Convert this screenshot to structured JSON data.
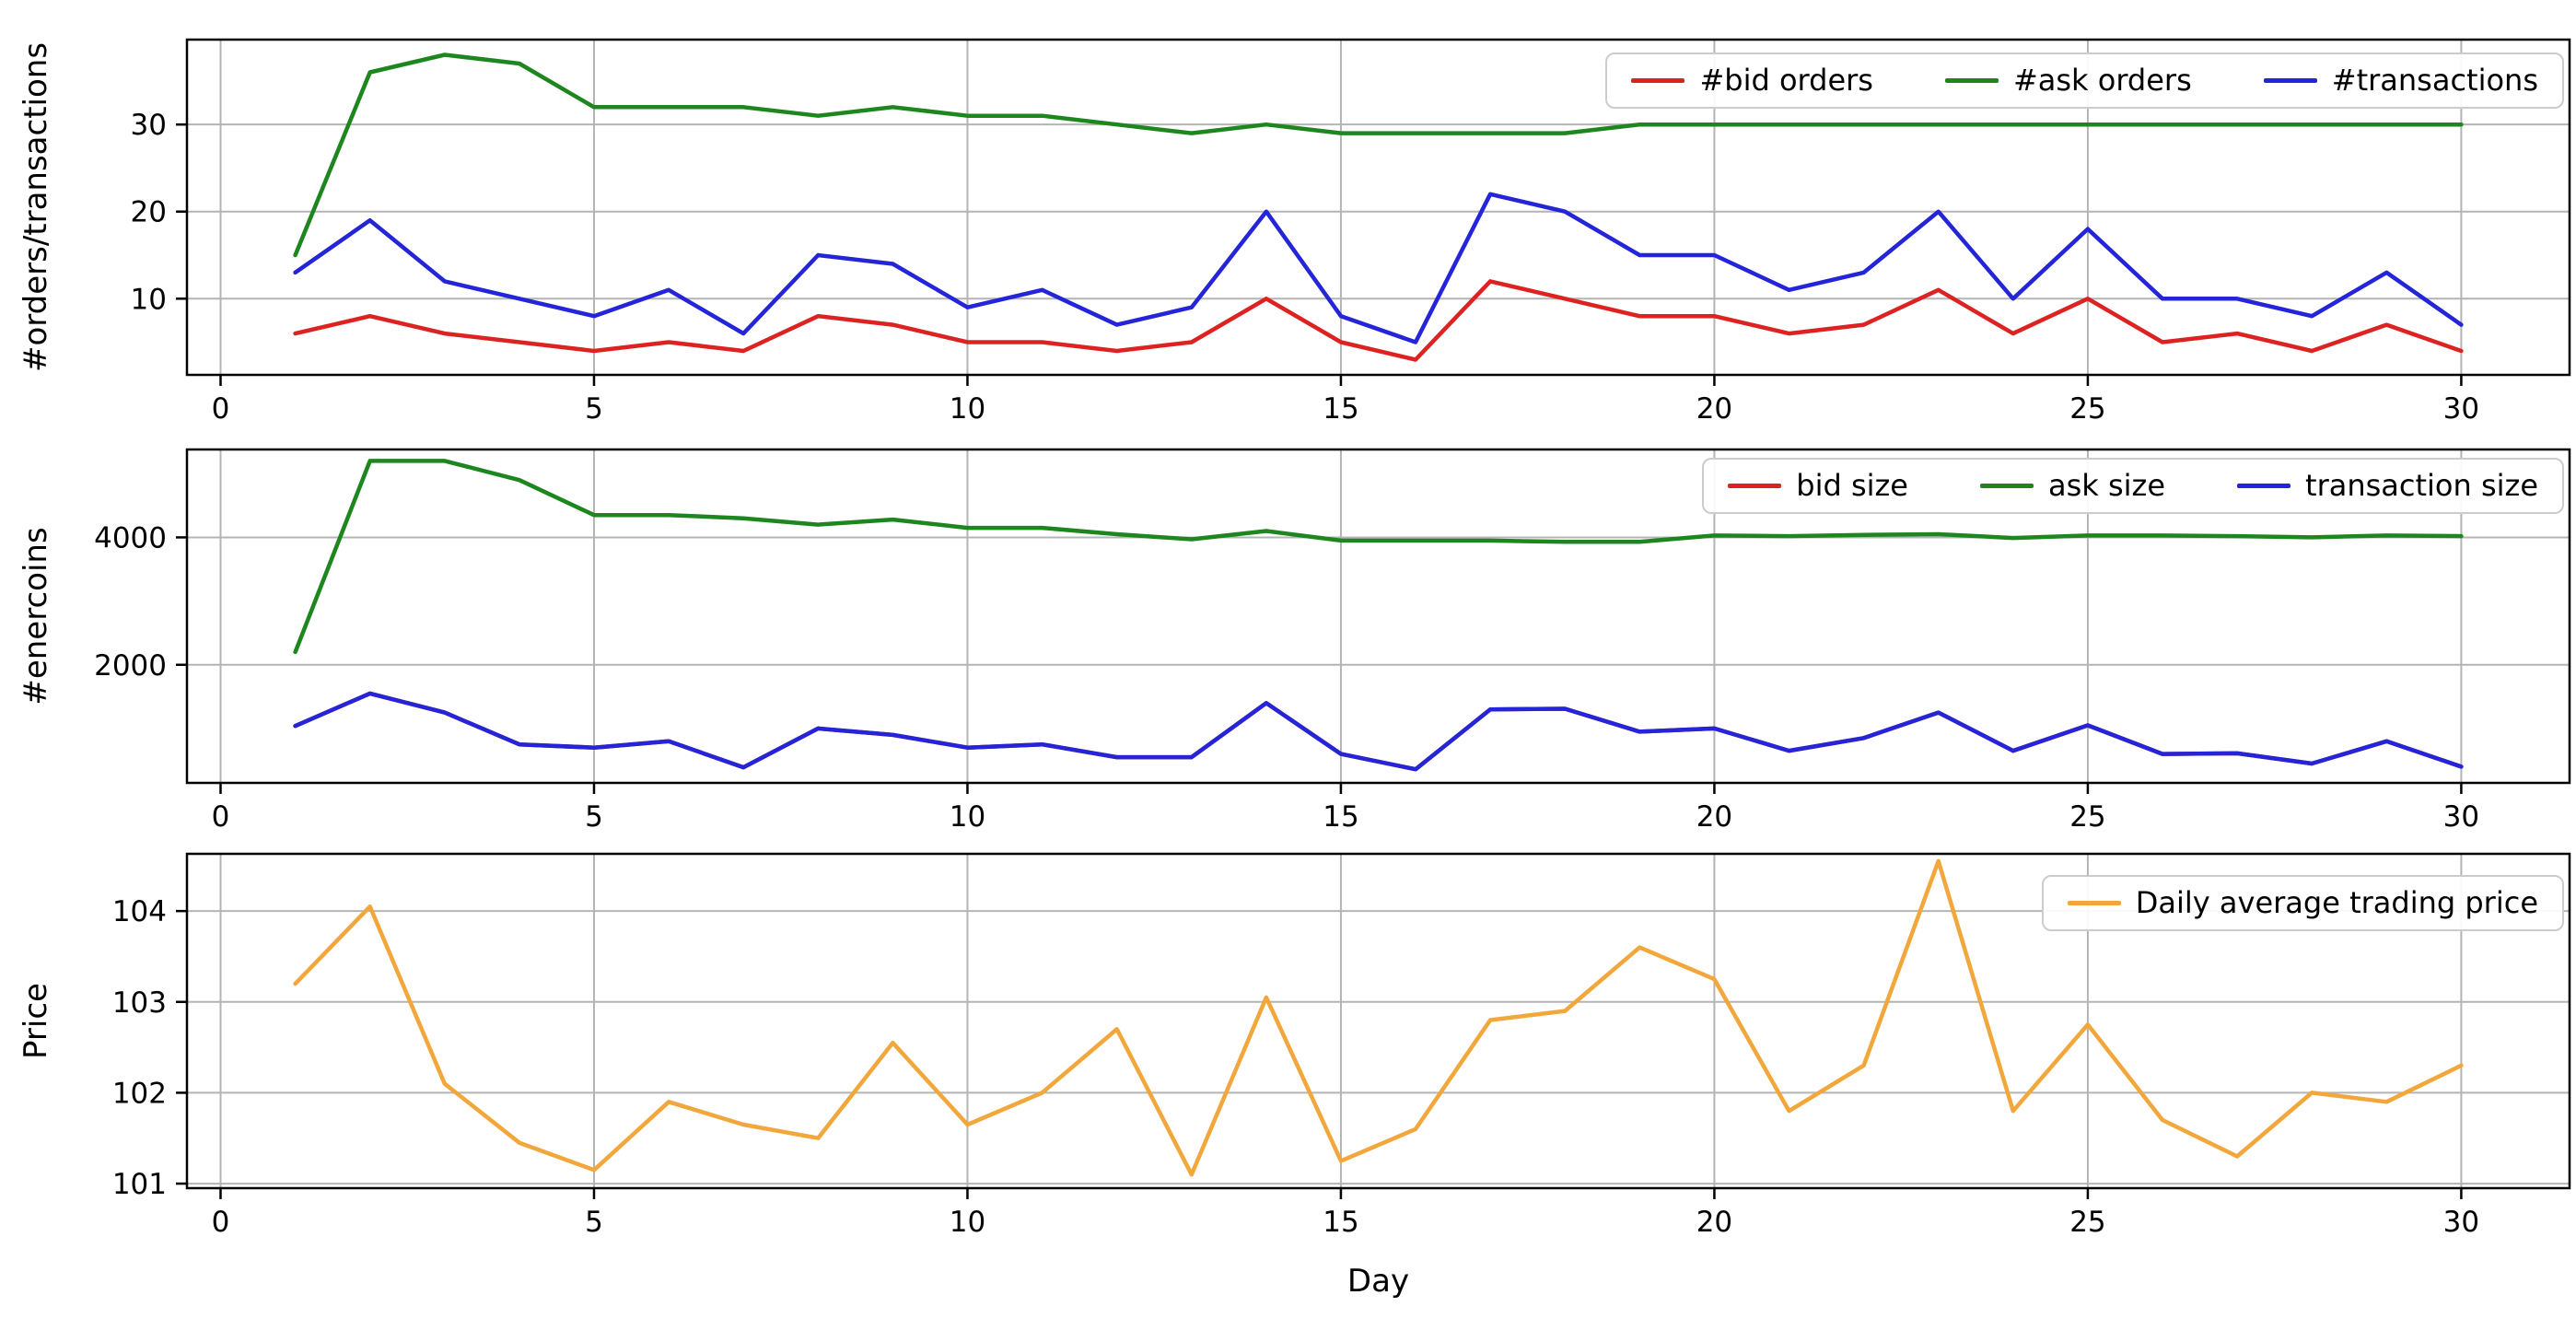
{
  "figure": {
    "background": "#ffffff",
    "plot_background": "#ffffff"
  },
  "colors": {
    "bid": "#dd2222",
    "ask": "#1e861e",
    "transaction": "#2424d8",
    "price": "#f2a73c",
    "grid": "#b4b4b4",
    "spine": "#000000",
    "tick_text": "#000000",
    "legend_border": "#cccccc"
  },
  "chart_data": [
    {
      "type": "line",
      "ylabel": "#orders/transactions",
      "xlabel": "",
      "x": [
        1,
        2,
        3,
        4,
        5,
        6,
        7,
        8,
        9,
        10,
        11,
        12,
        13,
        14,
        15,
        16,
        17,
        18,
        19,
        20,
        21,
        22,
        23,
        24,
        25,
        26,
        27,
        28,
        29,
        30
      ],
      "xticks": [
        0,
        5,
        10,
        15,
        20,
        25,
        30
      ],
      "yticks": [
        10,
        20,
        30
      ],
      "xlim": [
        -0.45,
        31.45
      ],
      "ylim": [
        1.25,
        39.75
      ],
      "grid": true,
      "legend_location": "upper right",
      "series": [
        {
          "name": "#bid orders",
          "color_key": "bid",
          "values": [
            6,
            8,
            6,
            5,
            4,
            5,
            4,
            8,
            7,
            5,
            5,
            4,
            5,
            10,
            5,
            3,
            12,
            10,
            8,
            8,
            6,
            7,
            11,
            6,
            10,
            5,
            6,
            4,
            7,
            4
          ]
        },
        {
          "name": "#ask orders",
          "color_key": "ask",
          "values": [
            15,
            36,
            38,
            37,
            32,
            32,
            32,
            31,
            32,
            31,
            31,
            30,
            29,
            30,
            29,
            29,
            29,
            29,
            30,
            30,
            30,
            30,
            30,
            30,
            30,
            30,
            30,
            30,
            30,
            30
          ]
        },
        {
          "name": "#transactions",
          "color_key": "transaction",
          "values": [
            13,
            19,
            12,
            10,
            8,
            11,
            6,
            15,
            14,
            9,
            11,
            7,
            9,
            20,
            8,
            5,
            22,
            20,
            15,
            15,
            11,
            13,
            20,
            10,
            18,
            10,
            10,
            8,
            13,
            7
          ]
        }
      ]
    },
    {
      "type": "line",
      "ylabel": "#enercoins",
      "xlabel": "",
      "note": "bid size line coincides with transaction size line and is hidden beneath it",
      "x": [
        1,
        2,
        3,
        4,
        5,
        6,
        7,
        8,
        9,
        10,
        11,
        12,
        13,
        14,
        15,
        16,
        17,
        18,
        19,
        20,
        21,
        22,
        23,
        24,
        25,
        26,
        27,
        28,
        29,
        30
      ],
      "xticks": [
        0,
        5,
        10,
        15,
        20,
        25,
        30
      ],
      "yticks": [
        2000,
        4000
      ],
      "xlim": [
        -0.45,
        31.45
      ],
      "ylim": [
        146,
        5380
      ],
      "grid": true,
      "legend_location": "upper right",
      "series": [
        {
          "name": "bid size",
          "color_key": "bid",
          "values": [
            1040,
            1550,
            1250,
            750,
            700,
            800,
            390,
            1000,
            900,
            700,
            750,
            550,
            550,
            1400,
            600,
            360,
            1300,
            1310,
            950,
            1000,
            650,
            850,
            1250,
            650,
            1050,
            600,
            610,
            450,
            800,
            400
          ]
        },
        {
          "name": "ask size",
          "color_key": "ask",
          "values": [
            2200,
            5200,
            5200,
            4900,
            4350,
            4350,
            4300,
            4200,
            4280,
            4150,
            4150,
            4050,
            3970,
            4100,
            3950,
            3950,
            3950,
            3930,
            3930,
            4030,
            4020,
            4040,
            4050,
            3990,
            4030,
            4030,
            4020,
            4000,
            4030,
            4020
          ]
        },
        {
          "name": "transaction size",
          "color_key": "transaction",
          "values": [
            1040,
            1550,
            1250,
            750,
            700,
            800,
            390,
            1000,
            900,
            700,
            750,
            550,
            550,
            1400,
            600,
            360,
            1300,
            1310,
            950,
            1000,
            650,
            850,
            1250,
            650,
            1050,
            600,
            610,
            450,
            800,
            400
          ]
        }
      ]
    },
    {
      "type": "line",
      "ylabel": "Price",
      "xlabel": "Day",
      "x": [
        1,
        2,
        3,
        4,
        5,
        6,
        7,
        8,
        9,
        10,
        11,
        12,
        13,
        14,
        15,
        16,
        17,
        18,
        19,
        20,
        21,
        22,
        23,
        24,
        25,
        26,
        27,
        28,
        29,
        30
      ],
      "xticks": [
        0,
        5,
        10,
        15,
        20,
        25,
        30
      ],
      "yticks": [
        101,
        102,
        103,
        104
      ],
      "xlim": [
        -0.45,
        31.45
      ],
      "ylim": [
        100.95,
        104.63
      ],
      "grid": true,
      "legend_location": "upper right",
      "series": [
        {
          "name": "Daily average trading price",
          "color_key": "price",
          "values": [
            103.2,
            104.05,
            102.1,
            101.45,
            101.15,
            101.9,
            101.65,
            101.5,
            102.55,
            101.65,
            102.0,
            102.7,
            101.1,
            103.05,
            101.25,
            101.6,
            102.8,
            102.9,
            103.6,
            103.25,
            101.8,
            102.3,
            104.55,
            101.8,
            102.75,
            101.7,
            101.3,
            102.0,
            101.9,
            102.3
          ]
        }
      ]
    }
  ]
}
